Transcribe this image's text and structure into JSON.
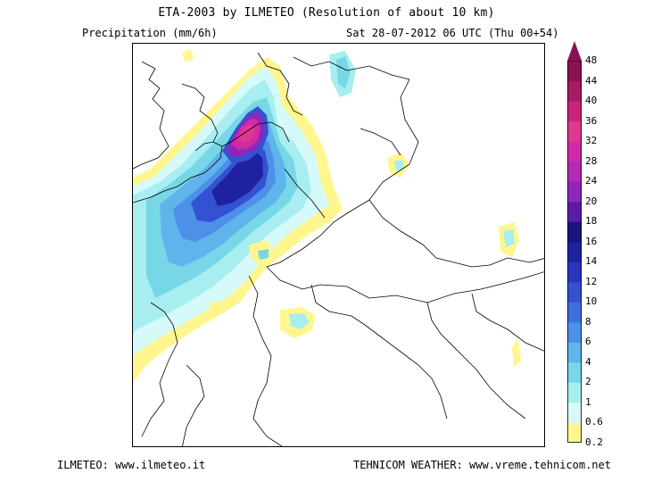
{
  "header": {
    "title": "ETA-2003 by ILMETEO (Resolution of about 10 km)",
    "variable": "Precipitation (mm/6h)",
    "valid_time": "Sat 28-07-2012 06 UTC (Thu 00+54)"
  },
  "footer": {
    "left": "ILMETEO: www.ilmeteo.it",
    "right": "TEHNICOM WEATHER: www.vreme.tehnicom.net"
  },
  "legend": {
    "levels": [
      "0.2",
      "0.6",
      "1",
      "2",
      "4",
      "6",
      "8",
      "10",
      "12",
      "14",
      "16",
      "18",
      "20",
      "24",
      "28",
      "32",
      "36",
      "40",
      "44",
      "48"
    ],
    "colors": [
      "#fff68f",
      "#d6fafa",
      "#a8eef0",
      "#78d7e6",
      "#5fb4ec",
      "#4d90e8",
      "#3f6fe0",
      "#3451d2",
      "#2a35be",
      "#1f22a0",
      "#17157c",
      "#5a1ca8",
      "#8e27b8",
      "#b32ab6",
      "#d02aa8",
      "#e0378f",
      "#c8247a",
      "#a81a66",
      "#8a1252"
    ]
  }
}
